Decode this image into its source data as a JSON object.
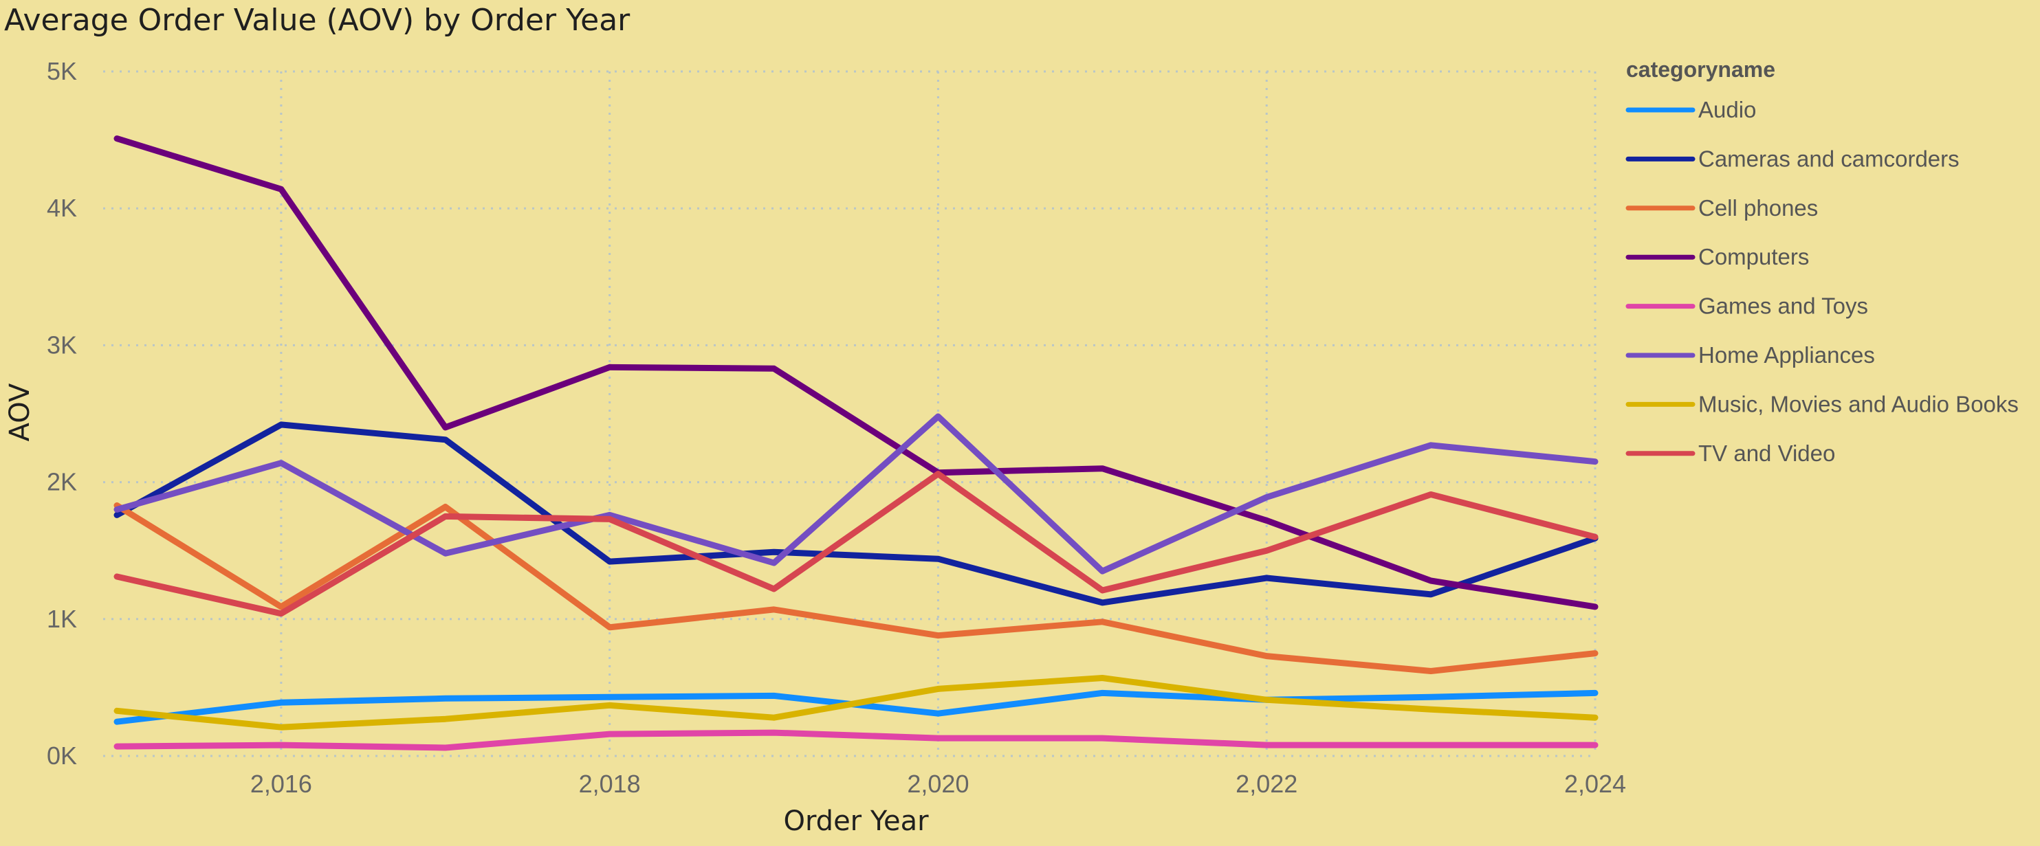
{
  "chart_data": {
    "type": "line",
    "title": "Average Order Value (AOV) by Order Year",
    "xlabel": "Order Year",
    "ylabel": "AOV",
    "x": [
      2015,
      2016,
      2017,
      2018,
      2019,
      2020,
      2021,
      2022,
      2023,
      2024
    ],
    "x_ticks": [
      2016,
      2018,
      2020,
      2022,
      2024
    ],
    "x_tick_labels": [
      "2,016",
      "2,018",
      "2,020",
      "2,022",
      "2,024"
    ],
    "xlim": [
      2015,
      2024
    ],
    "ylim": [
      0,
      5000
    ],
    "y_ticks": [
      0,
      1000,
      2000,
      3000,
      4000,
      5000
    ],
    "y_tick_labels": [
      "0K",
      "1K",
      "2K",
      "3K",
      "4K",
      "5K"
    ],
    "grid": true,
    "legend_title": "categoryname",
    "legend_position": "right",
    "series": [
      {
        "name": "Audio",
        "color": "#118DFF",
        "values": [
          250,
          390,
          420,
          430,
          440,
          310,
          460,
          410,
          430,
          460
        ]
      },
      {
        "name": "Cameras and camcorders",
        "color": "#12239E",
        "values": [
          1760,
          2420,
          2310,
          1420,
          1490,
          1440,
          1120,
          1300,
          1180,
          1590
        ]
      },
      {
        "name": "Cell phones",
        "color": "#E66C37",
        "values": [
          1830,
          1090,
          1820,
          940,
          1070,
          880,
          980,
          730,
          620,
          750
        ]
      },
      {
        "name": "Computers",
        "color": "#6B007B",
        "values": [
          4510,
          4140,
          2400,
          2840,
          2830,
          2070,
          2100,
          1720,
          1280,
          1090
        ]
      },
      {
        "name": "Games and Toys",
        "color": "#E044A7",
        "values": [
          70,
          80,
          60,
          160,
          170,
          130,
          130,
          80,
          80,
          80
        ]
      },
      {
        "name": "Home Appliances",
        "color": "#744EC2",
        "values": [
          1800,
          2140,
          1480,
          1760,
          1410,
          2480,
          1350,
          1890,
          2270,
          2150
        ]
      },
      {
        "name": "Music, Movies and Audio Books",
        "color": "#D9B300",
        "values": [
          330,
          210,
          270,
          370,
          280,
          490,
          570,
          410,
          340,
          280
        ]
      },
      {
        "name": "TV and Video",
        "color": "#D64550",
        "values": [
          1310,
          1040,
          1750,
          1730,
          1220,
          2060,
          1210,
          1500,
          1910,
          1600
        ]
      }
    ]
  }
}
